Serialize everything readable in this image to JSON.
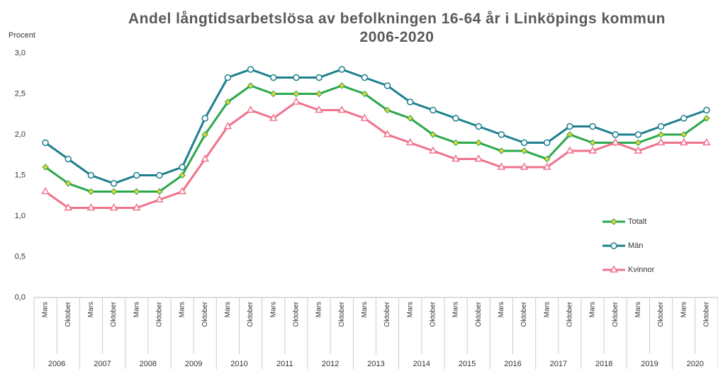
{
  "chart_data": {
    "type": "line",
    "title": "Andel långtidsarbetslösa av befolkningen 16-64 år i Linköpings kommun 2006-2020",
    "y_label": "Procent",
    "categories": [
      "Mars",
      "Oktober",
      "Mars",
      "Oktober",
      "Mars",
      "Oktober",
      "Mars",
      "Oktober",
      "Mars",
      "Oktober",
      "Mars",
      "Oktober",
      "Mars",
      "Oktober",
      "Mars",
      "Oktober",
      "Mars",
      "Oktober",
      "Mars",
      "Oktober",
      "Mars",
      "Oktober",
      "Mars",
      "Oktober",
      "Mars",
      "Oktober",
      "Mars",
      "Oktober",
      "Mars",
      "Oktober"
    ],
    "years": [
      "2006",
      "2007",
      "2008",
      "2009",
      "2010",
      "2011",
      "2012",
      "2013",
      "2014",
      "2015",
      "2016",
      "2017",
      "2018",
      "2019",
      "2020"
    ],
    "series": [
      {
        "name": "Totalt",
        "color": "#2aa84a",
        "marker": "diamond",
        "marker_color": "#e8d23a",
        "values": [
          1.6,
          1.4,
          1.3,
          1.3,
          1.3,
          1.3,
          1.5,
          2.0,
          2.4,
          2.6,
          2.5,
          2.5,
          2.5,
          2.6,
          2.5,
          2.3,
          2.2,
          2.0,
          1.9,
          1.9,
          1.8,
          1.8,
          1.7,
          2.0,
          1.9,
          1.9,
          1.9,
          2.0,
          2.0,
          2.2
        ]
      },
      {
        "name": "Män",
        "color": "#1d7f8e",
        "marker": "circle",
        "marker_color": "#ffffff",
        "values": [
          1.9,
          1.7,
          1.5,
          1.4,
          1.5,
          1.5,
          1.6,
          2.2,
          2.7,
          2.8,
          2.7,
          2.7,
          2.7,
          2.8,
          2.7,
          2.6,
          2.4,
          2.3,
          2.2,
          2.1,
          2.0,
          1.9,
          1.9,
          2.1,
          2.1,
          2.0,
          2.0,
          2.1,
          2.2,
          2.3
        ]
      },
      {
        "name": "Kvinnor",
        "color": "#f0728c",
        "marker": "triangle",
        "marker_color": "#ffffff",
        "values": [
          1.3,
          1.1,
          1.1,
          1.1,
          1.1,
          1.2,
          1.3,
          1.7,
          2.1,
          2.3,
          2.2,
          2.4,
          2.3,
          2.3,
          2.2,
          2.0,
          1.9,
          1.8,
          1.7,
          1.7,
          1.6,
          1.6,
          1.6,
          1.8,
          1.8,
          1.9,
          1.8,
          1.9,
          1.9,
          1.9
        ]
      }
    ],
    "ylim": [
      0,
      3
    ],
    "yticks": [
      {
        "value": 0,
        "label": "0,0"
      },
      {
        "value": 0.5,
        "label": "0,5"
      },
      {
        "value": 1,
        "label": "1,0"
      },
      {
        "value": 1.5,
        "label": "1,5"
      },
      {
        "value": 2,
        "label": "2,0"
      },
      {
        "value": 2.5,
        "label": "2,5"
      },
      {
        "value": 3,
        "label": "3,0"
      }
    ],
    "grid": false,
    "legend": "right"
  }
}
